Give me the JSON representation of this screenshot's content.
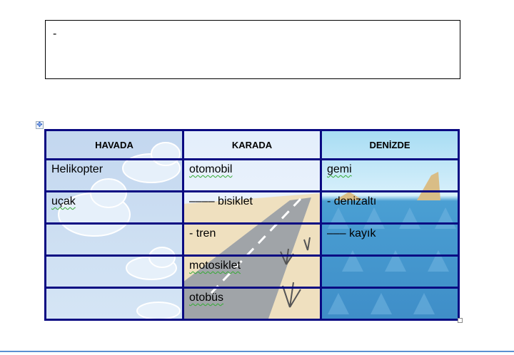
{
  "textbox": {
    "text": "-"
  },
  "table": {
    "headers": [
      "HAVADA",
      "KARADA",
      "DENİZDE"
    ],
    "rows": [
      [
        "Helikopter",
        "otomobil",
        "gemi"
      ],
      [
        "uçak",
        "–––– bisiklet",
        "- denizaltı"
      ],
      [
        "",
        "- tren",
        "––– kayık"
      ],
      [
        "",
        "motosiklet",
        ""
      ],
      [
        "",
        "otobüs",
        ""
      ]
    ]
  },
  "colors": {
    "border": "#0a0a82",
    "sky": "#c3d7ef",
    "sea": "#3f8ec8",
    "sand": "#efe0bf",
    "road": "#a0a4a8"
  }
}
